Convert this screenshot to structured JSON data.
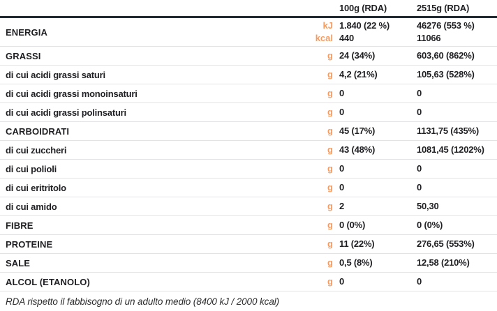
{
  "colors": {
    "accent_orange": "#f89b5e",
    "header_rule": "#1e2936",
    "row_separator": "#e3e3e6",
    "text": "#1f1f23"
  },
  "table": {
    "col_headers": [
      "100g (RDA)",
      "2515g (RDA)"
    ],
    "rows": [
      {
        "label": "ENERGIA",
        "main": true,
        "units": [
          "kJ",
          "kcal"
        ],
        "val1": [
          "1.840 (22 %)",
          "440"
        ],
        "val2": [
          "46276 (553 %)",
          "11066"
        ]
      },
      {
        "label": "GRASSI",
        "main": true,
        "units": [
          "g"
        ],
        "val1": [
          "24 (34%)"
        ],
        "val2": [
          "603,60 (862%)"
        ]
      },
      {
        "label": "di cui acidi grassi saturi",
        "main": false,
        "units": [
          "g"
        ],
        "val1": [
          "4,2 (21%)"
        ],
        "val2": [
          "105,63 (528%)"
        ]
      },
      {
        "label": "di cui acidi grassi monoinsaturi",
        "main": false,
        "units": [
          "g"
        ],
        "val1": [
          "0"
        ],
        "val2": [
          "0"
        ]
      },
      {
        "label": "di cui acidi grassi polinsaturi",
        "main": false,
        "units": [
          "g"
        ],
        "val1": [
          "0"
        ],
        "val2": [
          "0"
        ]
      },
      {
        "label": "CARBOIDRATI",
        "main": true,
        "units": [
          "g"
        ],
        "val1": [
          "45 (17%)"
        ],
        "val2": [
          "1131,75 (435%)"
        ]
      },
      {
        "label": "di cui zuccheri",
        "main": false,
        "units": [
          "g"
        ],
        "val1": [
          "43 (48%)"
        ],
        "val2": [
          "1081,45 (1202%)"
        ]
      },
      {
        "label": "di cui polioli",
        "main": false,
        "units": [
          "g"
        ],
        "val1": [
          "0"
        ],
        "val2": [
          "0"
        ]
      },
      {
        "label": "di cui eritritolo",
        "main": false,
        "units": [
          "g"
        ],
        "val1": [
          "0"
        ],
        "val2": [
          "0"
        ]
      },
      {
        "label": "di cui amido",
        "main": false,
        "units": [
          "g"
        ],
        "val1": [
          "2"
        ],
        "val2": [
          "50,30"
        ]
      },
      {
        "label": "FIBRE",
        "main": true,
        "units": [
          "g"
        ],
        "val1": [
          "0 (0%)"
        ],
        "val2": [
          "0 (0%)"
        ]
      },
      {
        "label": "PROTEINE",
        "main": true,
        "units": [
          "g"
        ],
        "val1": [
          "11 (22%)"
        ],
        "val2": [
          "276,65 (553%)"
        ]
      },
      {
        "label": "SALE",
        "main": true,
        "units": [
          "g"
        ],
        "val1": [
          "0,5 (8%)"
        ],
        "val2": [
          "12,58 (210%)"
        ]
      },
      {
        "label": "ALCOL (ETANOLO)",
        "main": true,
        "units": [
          "g"
        ],
        "val1": [
          "0"
        ],
        "val2": [
          "0"
        ]
      }
    ],
    "footer": "RDA rispetto il fabbisogno di un adulto medio (8400 kJ / 2000 kcal)"
  }
}
